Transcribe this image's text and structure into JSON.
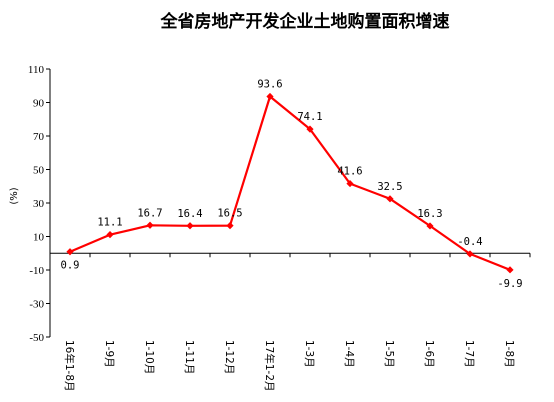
{
  "chart_data": {
    "type": "line",
    "title": "全省房地产开发企业土地购置面积增速",
    "ylabel": "(%)",
    "xlabel": "",
    "ylim": [
      -50,
      110
    ],
    "yticks": [
      110,
      90,
      70,
      50,
      30,
      10,
      -10,
      -30,
      -50
    ],
    "categories": [
      "16年1-8月",
      "1-9月",
      "1-10月",
      "1-11月",
      "1-12月",
      "17年1-2月",
      "1-3月",
      "1-4月",
      "1-5月",
      "1-6月",
      "1-7月",
      "1-8月"
    ],
    "series": [
      {
        "values": [
          0.9,
          11.1,
          16.7,
          16.4,
          16.5,
          93.6,
          74.1,
          41.6,
          32.5,
          16.3,
          -0.4,
          -9.9
        ]
      }
    ],
    "data_labels": [
      "0.9",
      "11.1",
      "16.7",
      "16.4",
      "16.5",
      "93.6",
      "74.1",
      "41.6",
      "32.5",
      "16.3",
      "-0.4",
      "-9.9"
    ],
    "label_position": [
      "below",
      "above",
      "above",
      "above",
      "above",
      "above",
      "above",
      "above",
      "above",
      "above",
      "above",
      "below"
    ],
    "line_color": "#ff0000",
    "marker": "diamond",
    "grid": false,
    "legend": "none"
  }
}
